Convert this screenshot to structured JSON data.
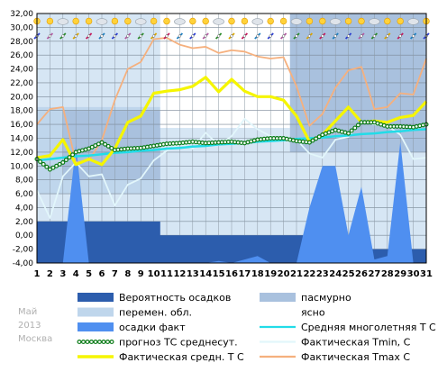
{
  "chart_data": {
    "type": "line",
    "side_text": [
      "Май",
      "2013",
      "Москва"
    ],
    "x": [
      1,
      2,
      3,
      4,
      5,
      6,
      7,
      8,
      9,
      10,
      11,
      12,
      13,
      14,
      15,
      16,
      17,
      18,
      19,
      20,
      21,
      22,
      23,
      24,
      25,
      26,
      27,
      28,
      29,
      30,
      31
    ],
    "ylim": [
      -4,
      32
    ],
    "yticks": [
      "-4,00",
      "-2,00",
      "0,00",
      "2,00",
      "4,00",
      "6,00",
      "8,00",
      "10,00",
      "12,00",
      "14,00",
      "16,00",
      "18,00",
      "20,00",
      "22,00",
      "24,00",
      "26,00",
      "28,00",
      "30,00",
      "32,00"
    ],
    "ytick_values": [
      -4,
      -2,
      0,
      2,
      4,
      6,
      8,
      10,
      12,
      14,
      16,
      18,
      20,
      22,
      24,
      26,
      28,
      30,
      32
    ],
    "grid": true,
    "colors": {
      "plot_bg": "#d6e6f4",
      "overcast": "#a9c1de",
      "partly_cloudy": "#bfd6ec",
      "precip_prob": "#2c5dad",
      "precip_fact": "#4f8ff0",
      "tmax": "#f5b07e",
      "tmin": "#e2f6fb",
      "mean": "#f5f500",
      "norm": "#22dce8",
      "forecast": "#0a7a16"
    },
    "series": [
      {
        "name": "Фактическая Tmax C",
        "key": "tmax",
        "values": [
          16,
          18.2,
          18.5,
          10.5,
          10.8,
          13.7,
          19.5,
          24,
          25,
          28.3,
          28.5,
          27.5,
          27,
          27.2,
          26.3,
          26.7,
          26.5,
          25.8,
          25.5,
          25.7,
          21.5,
          15.8,
          17.5,
          21.3,
          23.8,
          24.3,
          18.2,
          18.5,
          20.5,
          20.3,
          25.5
        ]
      },
      {
        "name": "Фактическая Tmin, C",
        "key": "tmin",
        "values": [
          6.5,
          2.5,
          8.5,
          10.5,
          8.5,
          8.8,
          4.3,
          7.3,
          8.2,
          10.8,
          12.2,
          13.2,
          12.5,
          14.8,
          13,
          14.3,
          16.8,
          15.3,
          14.3,
          14,
          13.8,
          11.8,
          11.2,
          13.8,
          14.2,
          16.5,
          16,
          15.8,
          14.5,
          11,
          11.2
        ]
      },
      {
        "name": "Фактическая средн. T C",
        "key": "mean",
        "values": [
          11.2,
          11.5,
          13.8,
          10.2,
          11,
          10.2,
          12.5,
          16.3,
          17.2,
          20.5,
          20.8,
          21,
          21.5,
          22.8,
          20.7,
          22.5,
          20.8,
          20,
          20,
          19.5,
          17.2,
          13.5,
          14.5,
          16.5,
          18.5,
          16.3,
          16.5,
          16.3,
          17,
          17.3,
          19.3
        ]
      },
      {
        "name": "прогноз ТС среднесут.",
        "key": "forecast",
        "values": [
          11,
          9.5,
          10.5,
          12,
          12.5,
          13.4,
          12.3,
          12.5,
          12.6,
          12.9,
          13.2,
          13.3,
          13.5,
          13.3,
          13.4,
          13.5,
          13.3,
          13.8,
          14,
          14,
          13.6,
          13.4,
          14.5,
          15.2,
          14.7,
          16.3,
          16.3,
          15.7,
          15.7,
          15.6,
          16
        ]
      },
      {
        "name": "Средняя многолетняя Т С",
        "key": "norm",
        "values": [
          10.8,
          11,
          11.2,
          11.4,
          11.5,
          11.7,
          11.9,
          12,
          12.2,
          12.3,
          12.5,
          12.6,
          12.8,
          12.9,
          13.1,
          13.2,
          13.3,
          13.5,
          13.6,
          13.7,
          13.9,
          14,
          14.1,
          14.3,
          14.4,
          14.6,
          14.7,
          14.9,
          15,
          15.2,
          15.3
        ]
      },
      {
        "name": "осадки факт",
        "key": "precip_fact",
        "values": [
          -4,
          -4,
          -4,
          13,
          -4,
          -4,
          -4,
          -4,
          -4,
          -4,
          -4,
          -4,
          -4,
          -4,
          -3.7,
          -4,
          -3.5,
          -3,
          -4,
          -4,
          -4,
          4,
          10,
          10,
          0,
          7,
          -3.5,
          -3,
          13.5,
          -4,
          -4
        ]
      },
      {
        "name": "Вероятность осадков",
        "key": "precip_prob",
        "values": [
          2,
          2,
          2,
          2,
          2,
          2,
          2,
          2,
          2,
          2,
          0,
          0,
          0,
          0,
          0,
          0,
          0,
          0,
          0,
          0,
          0,
          -2,
          -2,
          -2,
          -2,
          -2,
          -2,
          -2,
          -2,
          -2,
          -2
        ]
      },
      {
        "name": "пасмурно",
        "key": "overcast"
      },
      {
        "name": "перемен. обл.",
        "key": "partly_cloudy"
      },
      {
        "name": "ясно",
        "key": "clear"
      }
    ],
    "sky_regions": [
      {
        "kind": "partly_cloudy",
        "from": 1,
        "to": 10.5,
        "y_from": 6,
        "y_to": 18.5
      },
      {
        "kind": "overcast",
        "from": 3,
        "to": 10.5,
        "y_from": 8,
        "y_to": 18
      },
      {
        "kind": "clear",
        "from": 10.5,
        "to": 20.5,
        "y_from": 15.5,
        "y_to": 32
      },
      {
        "kind": "overcast",
        "from": 20.5,
        "to": 31,
        "y_from": 12,
        "y_to": 32
      }
    ],
    "legend": [
      {
        "label": "Вероятность осадков",
        "key": "precip_prob",
        "kind": "box"
      },
      {
        "label": "пасмурно",
        "key": "overcast",
        "kind": "box"
      },
      {
        "label": "перемен. обл.",
        "key": "partly_cloudy",
        "kind": "box"
      },
      {
        "label": "ясно",
        "key": "clear",
        "kind": "box"
      },
      {
        "label": "осадки факт",
        "key": "precip_fact",
        "kind": "box"
      },
      {
        "label": "Средняя многолетняя Т С",
        "key": "norm",
        "kind": "line"
      },
      {
        "label": "прогноз ТС среднесут.",
        "key": "forecast",
        "kind": "dots"
      },
      {
        "label": "Фактическая Tmin, C",
        "key": "tmin",
        "kind": "line"
      },
      {
        "label": "Фактическая средн. T C",
        "key": "mean",
        "kind": "line"
      },
      {
        "label": "Фактическая Tmax C",
        "key": "tmax",
        "kind": "line"
      }
    ]
  }
}
